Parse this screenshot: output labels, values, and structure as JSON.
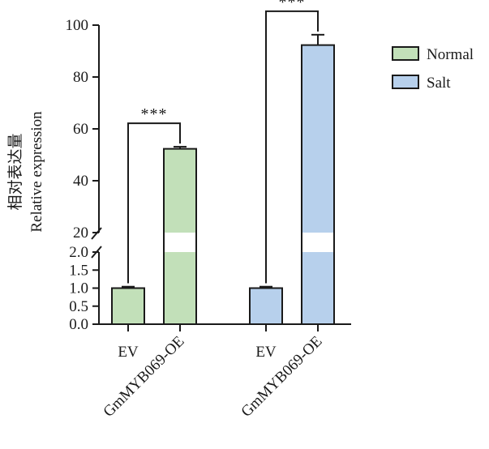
{
  "chart_data": {
    "type": "bar",
    "ylabel_cn": "相对表达量",
    "ylabel_en": "Relative expression",
    "yaxis": {
      "broken": true,
      "lower_range": [
        0,
        2
      ],
      "upper_range": [
        20,
        100
      ],
      "lower_ticks": [
        "0.0",
        "0.5",
        "1.0",
        "1.5",
        "2.0"
      ],
      "lower_tick_values": [
        0,
        0.5,
        1,
        1.5,
        2
      ],
      "upper_ticks": [
        "20",
        "40",
        "60",
        "80",
        "100"
      ],
      "upper_tick_values": [
        20,
        40,
        60,
        80,
        100
      ]
    },
    "legend": {
      "position": "top-right",
      "entries": [
        {
          "name": "Normal",
          "color": "#c2e0b9"
        },
        {
          "name": "Salt",
          "color": "#b7d0ec"
        }
      ]
    },
    "groups": [
      {
        "series": "Normal",
        "color": "#c2e0b9",
        "bars": [
          {
            "category": "EV",
            "value": 1.0,
            "error": 0.04
          },
          {
            "category": "GmMYB069-OE",
            "value": 52.3,
            "error": 0.8
          }
        ],
        "significance": "***"
      },
      {
        "series": "Salt",
        "color": "#b7d0ec",
        "bars": [
          {
            "category": "EV",
            "value": 1.0,
            "error": 0.04
          },
          {
            "category": "GmMYB069-OE",
            "value": 92.3,
            "error": 4.0
          }
        ],
        "significance": "***"
      }
    ]
  }
}
